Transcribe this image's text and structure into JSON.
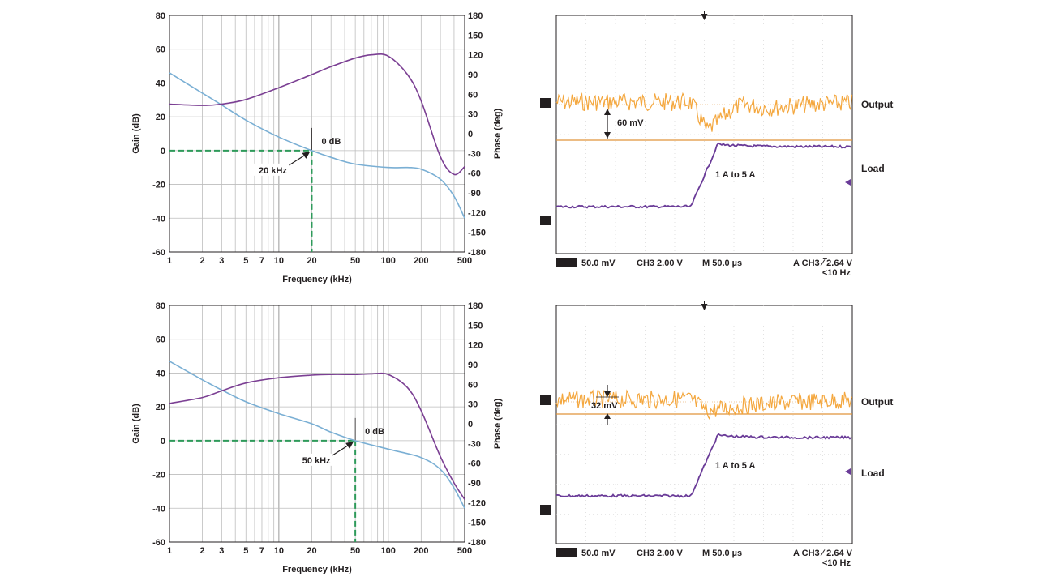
{
  "colors": {
    "gain": "#7aafd4",
    "phase": "#7b3f93",
    "crossover": "#2e9a5a",
    "output_trace": "#f3a234",
    "load_trace": "#6a3b98",
    "grid": "#bdbdbd",
    "reference_line": "#e0953a"
  },
  "chart_data": [
    {
      "type": "line",
      "title": "",
      "xlabel": "Frequency (kHz)",
      "ylabel": "Gain (dB)",
      "y2label": "Phase (deg)",
      "xscale": "log",
      "xlim": [
        1,
        500
      ],
      "ylim": [
        -60,
        80
      ],
      "y2lim": [
        -180,
        180
      ],
      "x_ticks": [
        "1",
        "2",
        "3",
        "5",
        "7",
        "10",
        "20",
        "50",
        "100",
        "200",
        "500"
      ],
      "y_ticks": [
        "80",
        "60",
        "40",
        "20",
        "0",
        "-20",
        "-40",
        "-60"
      ],
      "y2_ticks": [
        "180",
        "150",
        "120",
        "90",
        "60",
        "30",
        "0",
        "-30",
        "-60",
        "-90",
        "-120",
        "-150",
        "-180"
      ],
      "grid": true,
      "series": [
        {
          "name": "",
          "axis": "left",
          "color_key": "gain",
          "x": [
            1,
            2,
            3,
            5,
            10,
            20,
            30,
            50,
            100,
            150,
            200,
            300,
            400,
            500
          ],
          "y": [
            46,
            34,
            27,
            18,
            8,
            0,
            -4,
            -8,
            -10,
            -10,
            -11,
            -17,
            -27,
            -40
          ]
        },
        {
          "name": "",
          "axis": "right",
          "color_key": "phase",
          "x": [
            1,
            2,
            3,
            5,
            10,
            20,
            30,
            50,
            70,
            100,
            150,
            200,
            300,
            400,
            500
          ],
          "y": [
            45,
            43,
            45,
            52,
            70,
            90,
            102,
            115,
            120,
            118,
            90,
            50,
            -35,
            -62,
            -50
          ]
        }
      ],
      "annotations": [
        {
          "text": "0 dB",
          "x": 20,
          "y": 0
        },
        {
          "text": "20 kHz",
          "x": 20,
          "y": 0
        }
      ]
    },
    {
      "type": "line",
      "title": "",
      "xlabel": "Frequency (kHz)",
      "ylabel": "Gain (dB)",
      "y2label": "Phase (deg)",
      "xscale": "log",
      "xlim": [
        1,
        500
      ],
      "ylim": [
        -60,
        80
      ],
      "y2lim": [
        -180,
        180
      ],
      "x_ticks": [
        "1",
        "2",
        "3",
        "5",
        "7",
        "10",
        "20",
        "50",
        "100",
        "200",
        "500"
      ],
      "y_ticks": [
        "80",
        "60",
        "40",
        "20",
        "0",
        "-20",
        "-40",
        "-60"
      ],
      "y2_ticks": [
        "180",
        "150",
        "120",
        "90",
        "60",
        "30",
        "0",
        "-30",
        "-60",
        "-90",
        "-120",
        "-150",
        "-180"
      ],
      "grid": true,
      "series": [
        {
          "name": "",
          "axis": "left",
          "color_key": "gain",
          "x": [
            1,
            2,
            3,
            5,
            10,
            20,
            30,
            50,
            100,
            200,
            300,
            400,
            500
          ],
          "y": [
            47,
            36,
            30,
            23,
            16,
            10,
            5,
            0,
            -5,
            -10,
            -17,
            -28,
            -40
          ]
        },
        {
          "name": "",
          "axis": "right",
          "color_key": "phase",
          "x": [
            1,
            2,
            3,
            5,
            10,
            20,
            30,
            50,
            70,
            100,
            150,
            200,
            300,
            400,
            500
          ],
          "y": [
            31,
            40,
            50,
            62,
            70,
            74,
            75,
            75,
            76,
            75,
            55,
            20,
            -50,
            -90,
            -115
          ]
        }
      ],
      "annotations": [
        {
          "text": "0 dB",
          "x": 50,
          "y": 0
        },
        {
          "text": "50 kHz",
          "x": 50,
          "y": 0
        }
      ]
    }
  ],
  "scopes": [
    {
      "output_label": "Output",
      "load_label": "Load",
      "ch1_marker": "1",
      "ch3_marker": "3",
      "delta_label": "60 mV",
      "step_label": "1 A to 5 A",
      "ch1_badge": "CH1",
      "ch1_scale": "50.0 mV",
      "ch3_scale": "CH3  2.00 V",
      "timebase": "M 50.0 µs",
      "trigger": "A  CH3  ∕‾2.64 V",
      "trigger_freq": "<10 Hz",
      "dip_depth": 0.55,
      "dip_recovery": 0.18
    },
    {
      "output_label": "Output",
      "load_label": "Load",
      "ch1_marker": "1",
      "ch3_marker": "3",
      "delta_label": "32 mV",
      "step_label": "1 A to 5 A",
      "ch1_badge": "CH1",
      "ch1_scale": "50.0 mV",
      "ch3_scale": "CH3  2.00 V",
      "timebase": "M 50.0 µs",
      "trigger": "A  CH3  ∕‾2.64 V",
      "trigger_freq": "<10 Hz",
      "dip_depth": 0.3,
      "dip_recovery": 0.35
    }
  ]
}
